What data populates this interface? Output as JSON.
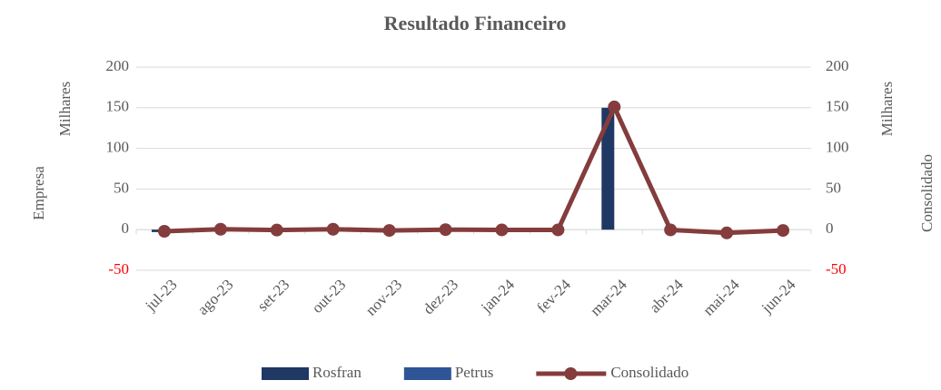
{
  "chart_data": {
    "type": "bar_line",
    "title": "Resultado Financeiro",
    "y_label": "Empresa",
    "y_units": "Milhares",
    "y2_label": "Consolidado",
    "y2_units": "Milhares",
    "categories": [
      "jul-23",
      "ago-23",
      "set-23",
      "out-23",
      "nov-23",
      "dez-23",
      "jan-24",
      "fev-24",
      "mar-24",
      "abr-24",
      "mai-24",
      "jun-24"
    ],
    "series": [
      {
        "name": "Rosfran",
        "type": "bar",
        "color": "#1f3864",
        "values": [
          -3,
          0,
          0,
          0,
          0,
          0,
          0,
          0,
          150,
          0,
          0,
          0
        ]
      },
      {
        "name": "Petrus",
        "type": "bar",
        "color": "#2f5597",
        "values": [
          0,
          0,
          0,
          0,
          0,
          0,
          0,
          0,
          0,
          0,
          0,
          0
        ]
      },
      {
        "name": "Consolidado",
        "type": "line",
        "axis": "y2",
        "color": "#843c3c",
        "values": [
          -2,
          0.5,
          -0.5,
          0.5,
          -1,
          0,
          -0.3,
          -0.3,
          151,
          -0.3,
          -4,
          -1
        ]
      }
    ],
    "ylim": [
      -50,
      200
    ],
    "yticks": [
      -50,
      0,
      50,
      100,
      150,
      200
    ],
    "y2lim": [
      -50,
      200
    ],
    "y2ticks": [
      -50,
      0,
      50,
      100,
      150,
      200
    ],
    "negative_color": "#ff0000",
    "grid": true,
    "legend": "bottom"
  }
}
